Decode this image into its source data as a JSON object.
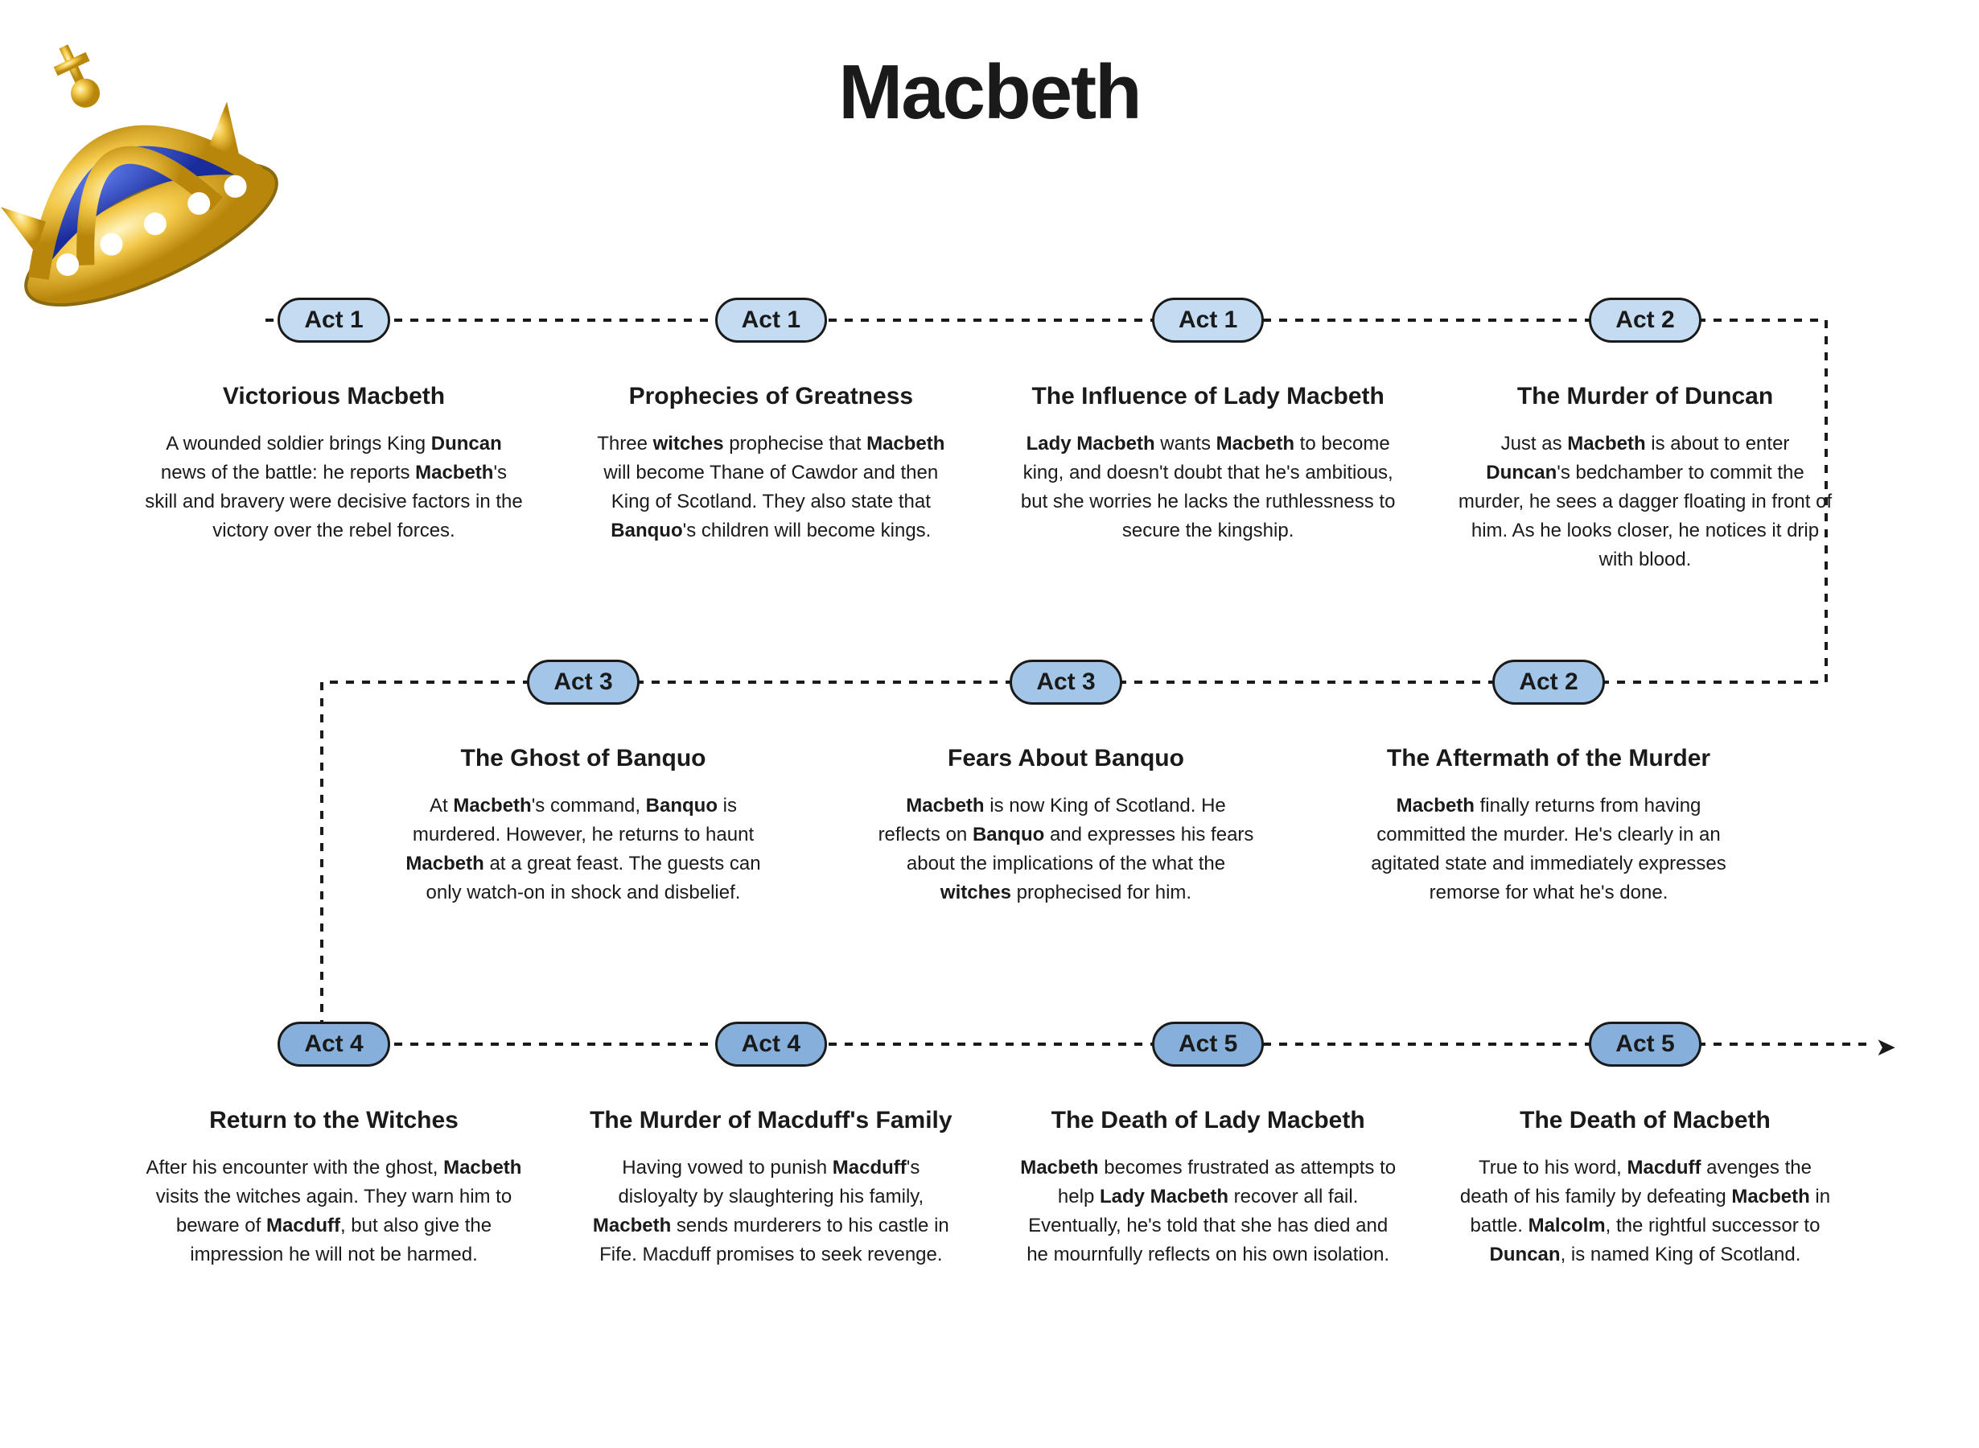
{
  "title": "Macbeth",
  "badge_colors": {
    "light": "#c4dcf2",
    "medium": "#a3c6e8",
    "dark": "#86b0db"
  },
  "badge_border": "#1a1a1a",
  "text_color": "#1a1a1a",
  "path_dash": "10 10",
  "path_width": 4,
  "path_color": "#1a1a1a",
  "background": "#ffffff",
  "row1": [
    {
      "act": "Act 1",
      "shade": "light",
      "title": "Victorious Macbeth",
      "desc": "A wounded soldier brings King <b>Duncan</b> news of the battle: he reports <b>Macbeth</b>'s skill and bravery were decisive factors in the victory over the rebel forces."
    },
    {
      "act": "Act 1",
      "shade": "light",
      "title": "Prophecies of Greatness",
      "desc": "Three <b>witches</b> prophecise that <b>Macbeth</b> will become Thane of Cawdor and then King of Scotland. They also state that <b>Banquo</b>'s children will become kings."
    },
    {
      "act": "Act 1",
      "shade": "light",
      "title": "The Influence of Lady Macbeth",
      "desc": "<b>Lady Macbeth</b> wants <b>Macbeth</b> to become king, and doesn't doubt that he's ambitious, but she worries he lacks the ruthlessness to secure the kingship."
    },
    {
      "act": "Act 2",
      "shade": "light",
      "title": "The Murder of Duncan",
      "desc": "Just as <b>Macbeth</b> is about to enter <b>Duncan</b>'s bedchamber to commit the murder, he sees a dagger floating in front of him. As he looks closer, he notices it drip with blood."
    }
  ],
  "row2": [
    {
      "act": "Act 3",
      "shade": "medium",
      "title": "The Ghost of Banquo",
      "desc": "At <b>Macbeth</b>'s command, <b>Banquo</b> is murdered. However, he returns to haunt <b>Macbeth</b> at a great feast. The guests can only watch-on in shock and disbelief."
    },
    {
      "act": "Act 3",
      "shade": "medium",
      "title": "Fears About Banquo",
      "desc": "<b>Macbeth</b> is now King of Scotland. He reflects on <b>Banquo</b> and expresses his fears about the implications of the what the <b>witches</b> prophecised for him."
    },
    {
      "act": "Act 2",
      "shade": "medium",
      "title": "The Aftermath of the Murder",
      "desc": "<b>Macbeth</b> finally returns from having committed the murder. He's clearly in an agitated state and immediately expresses remorse for what he's done."
    }
  ],
  "row3": [
    {
      "act": "Act 4",
      "shade": "dark",
      "title": "Return to the Witches",
      "desc": "After his encounter with the ghost, <b>Macbeth</b> visits the witches again. They warn him to beware of <b>Macduff</b>, but also give the impression he will not be harmed."
    },
    {
      "act": "Act 4",
      "shade": "dark",
      "title": "The Murder of Macduff's Family",
      "desc": "Having vowed to punish <b>Macduff</b>'s disloyalty by slaughtering his family, <b>Macbeth</b> sends murderers to his castle in Fife. Macduff promises to seek revenge."
    },
    {
      "act": "Act 5",
      "shade": "dark",
      "title": "The Death of Lady Macbeth",
      "desc": "<b>Macbeth</b> becomes frustrated as attempts to help <b>Lady Macbeth</b> recover all fail. Eventually, he's told that she has died and he mournfully reflects on his own isolation."
    },
    {
      "act": "Act 5",
      "shade": "dark",
      "title": "The Death of Macbeth",
      "desc": "True to his word, <b>Macduff</b> avenges the death of his family by defeating <b>Macbeth</b> in battle. <b>Malcolm</b>, the rightful successor to <b>Duncan</b>, is named King of Scotland."
    }
  ]
}
